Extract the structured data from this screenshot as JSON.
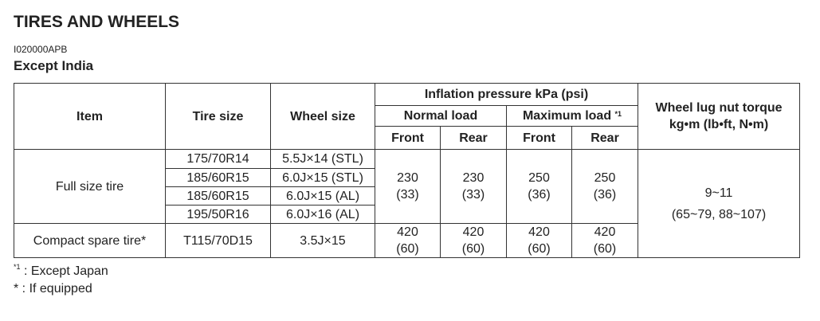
{
  "header": {
    "title": "TIRES AND WHEELS",
    "code": "I020000APB",
    "subtitle": "Except India"
  },
  "table": {
    "head": {
      "item": "Item",
      "tire_size": "Tire size",
      "wheel_size": "Wheel size",
      "inflation": "Inflation pressure kPa (psi)",
      "normal_load": "Normal load",
      "maximum_load": "Maximum load",
      "maximum_load_note": "*1",
      "front_normal": "Front",
      "rear_normal": "Rear",
      "front_max": "Front",
      "rear_max": "Rear",
      "torque": "Wheel lug nut torque\nkg•m (lb•ft, N•m)"
    },
    "full_size": {
      "item": "Full size tire",
      "sizes": [
        [
          "175/70R14",
          "5.5J×14 (STL)"
        ],
        [
          "185/60R15",
          "6.0J×15 (STL)"
        ],
        [
          "185/60R15",
          "6.0J×15 (AL)"
        ],
        [
          "195/50R16",
          "6.0J×16 (AL)"
        ]
      ],
      "pressures": [
        "230\n(33)",
        "230\n(33)",
        "250\n(36)",
        "250\n(36)"
      ]
    },
    "compact": {
      "item": "Compact spare tire*",
      "tire_size": "T115/70D15",
      "wheel_size": "3.5J×15",
      "pressures": [
        "420\n(60)",
        "420\n(60)",
        "420\n(60)",
        "420\n(60)"
      ]
    },
    "torque": [
      "9~11",
      "(65~79, 88~107)"
    ]
  },
  "footnotes": [
    {
      "mark": "*1",
      "text": " : Except Japan"
    },
    {
      "mark": "*",
      "text": " : If equipped"
    }
  ]
}
